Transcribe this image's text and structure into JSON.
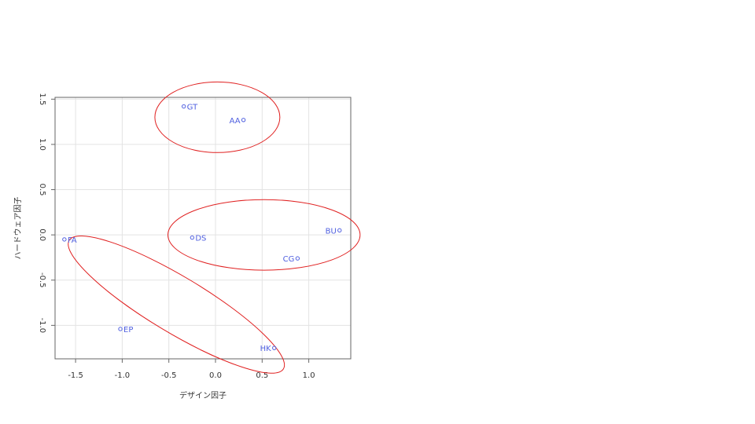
{
  "chart_data": {
    "type": "scatter",
    "xlabel": "デザイン因子",
    "ylabel": "ハードウェア因子",
    "xlim": [
      -1.72,
      1.45
    ],
    "ylim": [
      -1.37,
      1.52
    ],
    "xticks": [
      "-1.5",
      "-1.0",
      "-0.5",
      "0.0",
      "0.5",
      "1.0"
    ],
    "yticks": [
      "-1.0",
      "-0.5",
      "0.0",
      "0.5",
      "1.0",
      "1.5"
    ],
    "grid": true,
    "points": [
      {
        "label": "GT",
        "x": -0.34,
        "y": 1.42,
        "label_side": "right"
      },
      {
        "label": "AA",
        "x": 0.3,
        "y": 1.27,
        "label_side": "left"
      },
      {
        "label": "DS",
        "x": -0.25,
        "y": -0.03,
        "label_side": "right"
      },
      {
        "label": "BU",
        "x": 1.33,
        "y": 0.05,
        "label_side": "left"
      },
      {
        "label": "FA",
        "x": -1.62,
        "y": -0.05,
        "label_side": "right"
      },
      {
        "label": "CG",
        "x": 0.88,
        "y": -0.26,
        "label_side": "left"
      },
      {
        "label": "EP",
        "x": -1.02,
        "y": -1.04,
        "label_side": "right"
      },
      {
        "label": "HK",
        "x": 0.63,
        "y": -1.25,
        "label_side": "left"
      }
    ],
    "ellipses": [
      {
        "name": "group-top",
        "cx": 0.02,
        "cy": 1.3,
        "rx": 0.67,
        "ry": 0.39,
        "angle": 0
      },
      {
        "name": "group-middle",
        "cx": 0.52,
        "cy": 0.0,
        "rx": 1.03,
        "ry": 0.39,
        "angle": 0
      },
      {
        "name": "group-diagonal",
        "cx": -0.42,
        "cy": -0.77,
        "rx": 1.34,
        "ry": 0.31,
        "angle": -31
      }
    ],
    "colors": {
      "points": "#5060e0",
      "ellipses": "#e02020",
      "grid": "#e3e3e3",
      "axis": "#666666"
    }
  }
}
